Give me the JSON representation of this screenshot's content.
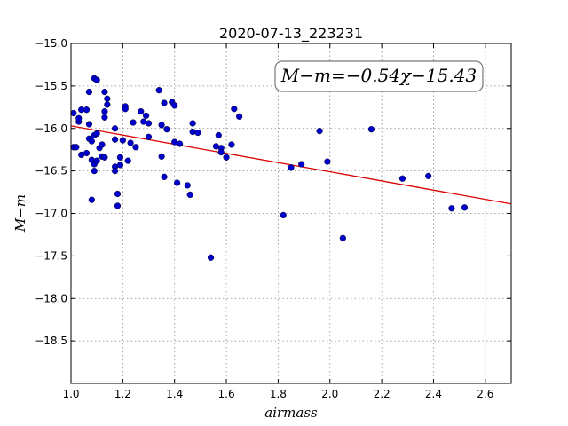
{
  "chart_data": {
    "type": "scatter",
    "title": "2020-07-13_223231",
    "xlabel": "airmass",
    "ylabel": "M−m",
    "xlim": [
      1.0,
      2.7
    ],
    "ylim": [
      -19.0,
      -15.0
    ],
    "y_inverted": true,
    "xticks": [
      1.0,
      1.2,
      1.4,
      1.6,
      1.8,
      2.0,
      2.2,
      2.4,
      2.6
    ],
    "xtick_labels": [
      "1.0",
      "1.2",
      "1.4",
      "1.6",
      "1.8",
      "2.0",
      "2.2",
      "2.4",
      "2.6"
    ],
    "yticks": [
      -15.0,
      -15.5,
      -16.0,
      -16.5,
      -17.0,
      -17.5,
      -18.0,
      -18.5
    ],
    "ytick_labels": [
      "−15.0",
      "−15.5",
      "−16.0",
      "−16.5",
      "−17.0",
      "−17.5",
      "−18.0",
      "−18.5"
    ],
    "grid": true,
    "point_color": "#0000cc",
    "fit_color": "#dd0000",
    "annotation": "M−m=−0.54χ−15.43",
    "fit": {
      "slope": -0.54,
      "intercept": -15.43
    },
    "points": [
      [
        1.01,
        -15.82
      ],
      [
        1.01,
        -16.22
      ],
      [
        1.02,
        -16.22
      ],
      [
        1.03,
        -15.92
      ],
      [
        1.03,
        -15.88
      ],
      [
        1.04,
        -15.78
      ],
      [
        1.04,
        -16.31
      ],
      [
        1.06,
        -15.78
      ],
      [
        1.06,
        -16.29
      ],
      [
        1.07,
        -15.57
      ],
      [
        1.07,
        -15.95
      ],
      [
        1.07,
        -16.12
      ],
      [
        1.08,
        -16.15
      ],
      [
        1.08,
        -16.37
      ],
      [
        1.08,
        -16.84
      ],
      [
        1.09,
        -15.41
      ],
      [
        1.09,
        -16.08
      ],
      [
        1.09,
        -16.42
      ],
      [
        1.09,
        -16.5
      ],
      [
        1.1,
        -15.43
      ],
      [
        1.1,
        -16.38
      ],
      [
        1.1,
        -16.06
      ],
      [
        1.11,
        -16.23
      ],
      [
        1.12,
        -16.19
      ],
      [
        1.12,
        -16.33
      ],
      [
        1.13,
        -16.34
      ],
      [
        1.13,
        -15.57
      ],
      [
        1.13,
        -15.8
      ],
      [
        1.13,
        -15.87
      ],
      [
        1.14,
        -15.65
      ],
      [
        1.14,
        -15.72
      ],
      [
        1.17,
        -16.0
      ],
      [
        1.17,
        -16.13
      ],
      [
        1.17,
        -16.45
      ],
      [
        1.17,
        -16.5
      ],
      [
        1.18,
        -16.77
      ],
      [
        1.18,
        -16.91
      ],
      [
        1.19,
        -16.34
      ],
      [
        1.19,
        -16.43
      ],
      [
        1.2,
        -16.14
      ],
      [
        1.21,
        -15.74
      ],
      [
        1.21,
        -15.77
      ],
      [
        1.22,
        -16.38
      ],
      [
        1.23,
        -16.17
      ],
      [
        1.24,
        -15.93
      ],
      [
        1.25,
        -16.22
      ],
      [
        1.27,
        -15.8
      ],
      [
        1.28,
        -15.92
      ],
      [
        1.29,
        -15.85
      ],
      [
        1.3,
        -16.1
      ],
      [
        1.3,
        -15.94
      ],
      [
        1.34,
        -15.55
      ],
      [
        1.35,
        -16.33
      ],
      [
        1.35,
        -15.96
      ],
      [
        1.36,
        -15.7
      ],
      [
        1.36,
        -16.57
      ],
      [
        1.37,
        -16.01
      ],
      [
        1.39,
        -15.69
      ],
      [
        1.4,
        -15.73
      ],
      [
        1.4,
        -16.16
      ],
      [
        1.41,
        -16.64
      ],
      [
        1.42,
        -16.18
      ],
      [
        1.45,
        -16.67
      ],
      [
        1.46,
        -16.78
      ],
      [
        1.47,
        -15.94
      ],
      [
        1.47,
        -16.04
      ],
      [
        1.49,
        -16.05
      ],
      [
        1.54,
        -17.52
      ],
      [
        1.56,
        -16.21
      ],
      [
        1.57,
        -16.08
      ],
      [
        1.58,
        -16.23
      ],
      [
        1.58,
        -16.28
      ],
      [
        1.6,
        -16.34
      ],
      [
        1.62,
        -16.19
      ],
      [
        1.63,
        -15.77
      ],
      [
        1.65,
        -15.86
      ],
      [
        1.82,
        -17.02
      ],
      [
        1.85,
        -16.46
      ],
      [
        1.89,
        -16.42
      ],
      [
        1.96,
        -16.03
      ],
      [
        1.99,
        -16.39
      ],
      [
        2.05,
        -17.29
      ],
      [
        2.16,
        -16.01
      ],
      [
        2.28,
        -16.59
      ],
      [
        2.38,
        -16.56
      ],
      [
        2.47,
        -16.94
      ],
      [
        2.52,
        -16.93
      ]
    ]
  }
}
